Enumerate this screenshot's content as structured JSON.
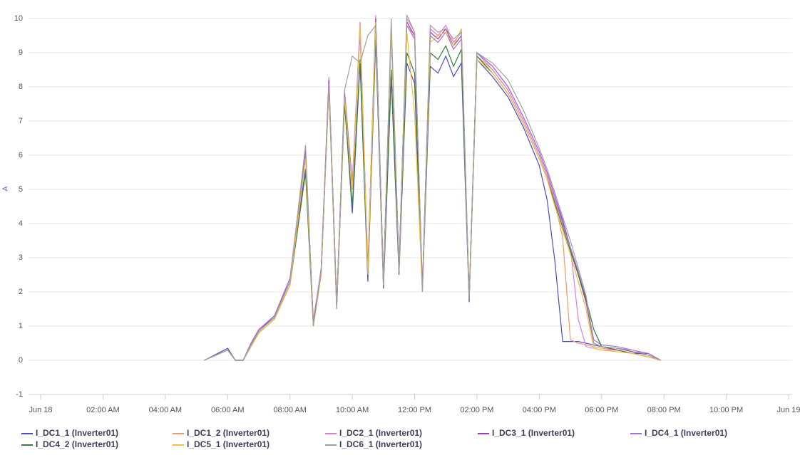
{
  "chart_data": {
    "type": "line",
    "y_label": "A",
    "xlim": [
      0,
      24
    ],
    "xticks": [
      {
        "value": 0,
        "label": "Jun 18"
      },
      {
        "value": 2,
        "label": "02:00 AM"
      },
      {
        "value": 4,
        "label": "04:00 AM"
      },
      {
        "value": 6,
        "label": "06:00 AM"
      },
      {
        "value": 8,
        "label": "08:00 AM"
      },
      {
        "value": 10,
        "label": "10:00 AM"
      },
      {
        "value": 12,
        "label": "12:00 PM"
      },
      {
        "value": 14,
        "label": "02:00 PM"
      },
      {
        "value": 16,
        "label": "04:00 PM"
      },
      {
        "value": 18,
        "label": "06:00 PM"
      },
      {
        "value": 20,
        "label": "08:00 PM"
      },
      {
        "value": 22,
        "label": "10:00 PM"
      },
      {
        "value": 24,
        "label": "Jun 19"
      }
    ],
    "ylim": [
      -1,
      10.5
    ],
    "yticks": [
      -1,
      0,
      1,
      2,
      3,
      4,
      5,
      6,
      7,
      8,
      9,
      10
    ],
    "grid": true,
    "legend": "bottom",
    "x": [
      5.25,
      6.0,
      6.25,
      6.5,
      6.75,
      7.0,
      7.5,
      8.0,
      8.5,
      8.75,
      9.0,
      9.25,
      9.5,
      9.75,
      10.0,
      10.25,
      10.5,
      10.75,
      11.0,
      11.25,
      11.5,
      11.75,
      12.0,
      12.25,
      12.5,
      12.75,
      13.0,
      13.25,
      13.5,
      13.75,
      14.0,
      14.5,
      15.0,
      15.5,
      16.0,
      16.25,
      16.5,
      16.75,
      17.0,
      17.25,
      17.5,
      17.75,
      18.0,
      18.5,
      19.0,
      19.5,
      19.9
    ],
    "series": [
      {
        "name": "I_DC1_1 (Inverter01)",
        "color": "#4b4bc8",
        "values": [
          0,
          0.35,
          0,
          0,
          0.5,
          0.9,
          1.3,
          2.3,
          5.6,
          1.1,
          2.6,
          8.1,
          1.6,
          7.6,
          4.3,
          8.7,
          2.3,
          9.4,
          2.1,
          8.3,
          2.5,
          8.7,
          8.1,
          2.0,
          8.6,
          8.4,
          8.9,
          8.3,
          8.7,
          1.7,
          8.8,
          8.3,
          7.7,
          6.8,
          5.7,
          4.7,
          2.9,
          0.55,
          0.55,
          0.55,
          0.5,
          0.45,
          0.4,
          0.3,
          0.2,
          0.2,
          0
        ]
      },
      {
        "name": "I_DC1_2 (Inverter01)",
        "color": "#ef9a68",
        "values": [
          0,
          0.3,
          0,
          0,
          0.45,
          0.85,
          1.25,
          2.3,
          6.0,
          1.2,
          2.6,
          8.2,
          1.7,
          7.8,
          5.0,
          9.8,
          2.7,
          10.0,
          2.4,
          9.7,
          2.8,
          9.8,
          9.5,
          2.0,
          9.6,
          9.4,
          9.7,
          9.2,
          9.7,
          1.9,
          8.9,
          8.5,
          7.9,
          7.0,
          6.0,
          5.4,
          4.6,
          3.6,
          0.6,
          0.5,
          0.45,
          0.4,
          0.35,
          0.3,
          0.2,
          0.1,
          0
        ]
      },
      {
        "name": "I_DC2_1 (Inverter01)",
        "color": "#e07ae0",
        "values": [
          0,
          0.3,
          0,
          0,
          0.5,
          0.9,
          1.3,
          2.4,
          6.2,
          1.1,
          2.7,
          8.3,
          1.6,
          7.9,
          5.2,
          9.9,
          2.6,
          10.1,
          2.3,
          9.8,
          2.7,
          10.0,
          9.6,
          2.1,
          9.7,
          9.5,
          9.8,
          9.3,
          9.6,
          1.8,
          9.0,
          8.5,
          7.9,
          7.0,
          6.0,
          5.4,
          4.7,
          4.0,
          3.3,
          1.2,
          0.4,
          0.35,
          0.3,
          0.3,
          0.2,
          0.1,
          0
        ]
      },
      {
        "name": "I_DC3_1 (Inverter01)",
        "color": "#9a3cbe",
        "values": [
          0,
          0.3,
          0,
          0,
          0.5,
          0.85,
          1.3,
          2.3,
          6.1,
          1.1,
          2.6,
          8.2,
          1.6,
          7.8,
          5.1,
          9.7,
          2.6,
          10.0,
          2.3,
          9.7,
          2.7,
          9.9,
          9.5,
          2.1,
          9.6,
          9.4,
          9.7,
          9.2,
          9.5,
          1.8,
          9.0,
          8.6,
          8.0,
          7.1,
          6.1,
          5.5,
          4.8,
          4.1,
          3.3,
          2.5,
          1.7,
          0.5,
          0.4,
          0.35,
          0.25,
          0.15,
          0
        ]
      },
      {
        "name": "I_DC4_1 (Inverter01)",
        "color": "#a472d4",
        "values": [
          0,
          0.3,
          0,
          0,
          0.5,
          0.9,
          1.3,
          2.4,
          6.0,
          1.1,
          2.6,
          8.1,
          1.7,
          7.7,
          5.0,
          9.6,
          2.6,
          9.9,
          2.3,
          9.6,
          2.7,
          9.8,
          9.4,
          2.1,
          9.5,
          9.3,
          9.6,
          9.1,
          9.4,
          1.8,
          9.0,
          8.6,
          8.0,
          7.1,
          6.1,
          5.5,
          4.8,
          4.0,
          3.3,
          2.6,
          1.8,
          0.6,
          0.45,
          0.4,
          0.3,
          0.2,
          0
        ]
      },
      {
        "name": "I_DC4_2 (Inverter01)",
        "color": "#3a7a3a",
        "values": [
          0,
          0.3,
          0,
          0,
          0.4,
          0.8,
          1.2,
          2.2,
          5.5,
          1.0,
          2.5,
          8.0,
          1.5,
          7.5,
          4.5,
          8.8,
          2.5,
          9.5,
          2.2,
          8.5,
          2.6,
          9.0,
          8.4,
          2.1,
          9.0,
          8.8,
          9.2,
          8.6,
          9.1,
          1.8,
          8.9,
          8.4,
          7.8,
          6.9,
          5.9,
          5.3,
          4.6,
          3.9,
          3.2,
          2.5,
          1.8,
          0.9,
          0.4,
          0.3,
          0.2,
          0.1,
          0
        ]
      },
      {
        "name": "I_DC5_1 (Inverter01)",
        "color": "#f0c03c",
        "values": [
          0,
          0.3,
          0,
          0,
          0.4,
          0.8,
          1.2,
          2.2,
          5.9,
          1.0,
          2.5,
          8.0,
          1.5,
          7.7,
          5.0,
          9.8,
          2.5,
          9.9,
          2.2,
          9.7,
          2.6,
          9.6,
          7.2,
          2.0,
          9.3,
          9.5,
          9.6,
          9.2,
          9.7,
          1.8,
          8.8,
          8.4,
          7.8,
          6.9,
          5.9,
          5.3,
          4.5,
          3.8,
          3.1,
          2.3,
          1.5,
          0.35,
          0.3,
          0.25,
          0.2,
          0.1,
          0
        ]
      },
      {
        "name": "I_DC6_1 (Inverter01)",
        "color": "#a0a0a0",
        "values": [
          0,
          0.3,
          0,
          0,
          0.45,
          0.85,
          1.25,
          2.3,
          6.3,
          1.0,
          2.6,
          8.1,
          1.5,
          7.9,
          8.9,
          8.7,
          9.5,
          9.8,
          2.2,
          10.0,
          2.6,
          10.1,
          9.6,
          2.0,
          9.8,
          9.6,
          9.7,
          9.4,
          9.6,
          1.8,
          9.0,
          8.7,
          8.2,
          7.3,
          6.2,
          5.6,
          4.9,
          4.2,
          3.5,
          2.7,
          1.9,
          0.5,
          0.4,
          0.35,
          0.3,
          0.15,
          0
        ]
      }
    ]
  }
}
